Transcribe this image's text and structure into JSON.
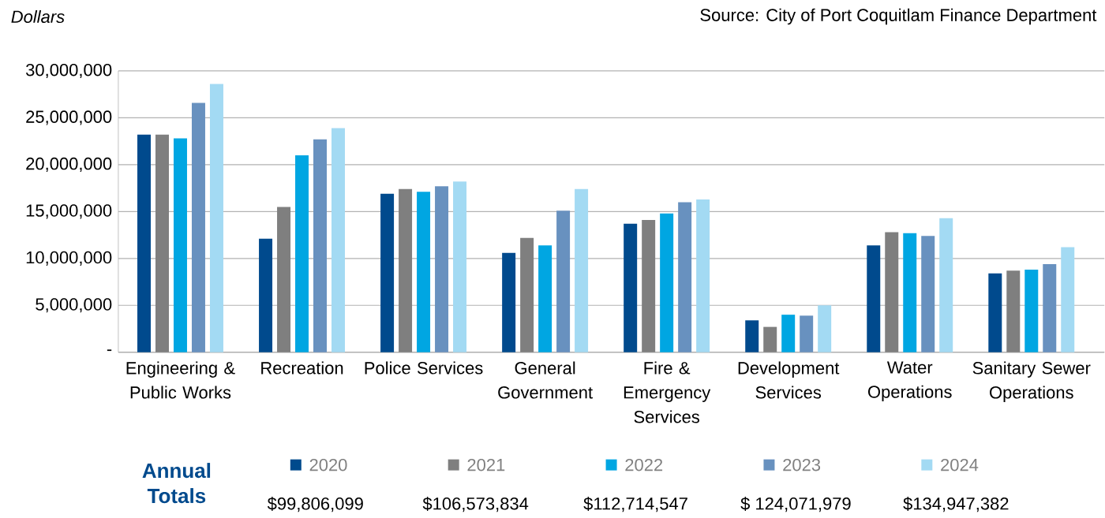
{
  "chart_data": {
    "type": "bar",
    "ylabel": "Dollars",
    "categories": [
      "Engineering & Public Works",
      "Recreation",
      "Police Services",
      "General Government",
      "Fire & Emergency Services",
      "Development Services",
      "Water Operations",
      "Sanitary Sewer Operations"
    ],
    "series": [
      {
        "name": "2020",
        "color": "#004a8d",
        "values": [
          23200000,
          12100000,
          16900000,
          10600000,
          13700000,
          3400000,
          11400000,
          8400000
        ]
      },
      {
        "name": "2021",
        "color": "#7f7f7f",
        "values": [
          23200000,
          15500000,
          17400000,
          12200000,
          14100000,
          2700000,
          12800000,
          8700000
        ]
      },
      {
        "name": "2022",
        "color": "#00a6e2",
        "values": [
          22800000,
          21000000,
          17100000,
          11400000,
          14800000,
          4000000,
          12700000,
          8800000
        ]
      },
      {
        "name": "2023",
        "color": "#6891bf",
        "values": [
          26600000,
          22700000,
          17700000,
          15100000,
          16000000,
          3900000,
          12400000,
          9400000
        ]
      },
      {
        "name": "2024",
        "color": "#a3daf3",
        "values": [
          28600000,
          23900000,
          18200000,
          17400000,
          16300000,
          5000000,
          14300000,
          11200000
        ]
      }
    ],
    "ylim": [
      0,
      30000000
    ],
    "yticks": [
      {
        "value": 0,
        "label": "-"
      },
      {
        "value": 5000000,
        "label": "5,000,000"
      },
      {
        "value": 10000000,
        "label": "10,000,000"
      },
      {
        "value": 15000000,
        "label": "15,000,000"
      },
      {
        "value": 20000000,
        "label": "20,000,000"
      },
      {
        "value": 25000000,
        "label": "25,000,000"
      },
      {
        "value": 30000000,
        "label": "30,000,000"
      }
    ],
    "grid": "y",
    "legend": "bottom",
    "annotations": [
      "Source: City of Port Coquitlam Finance Department",
      "Annual Totals",
      "$99,806,099",
      "$106,573,834",
      "$112,714,547",
      "$ 124,071,979",
      "$134,947,382"
    ]
  }
}
